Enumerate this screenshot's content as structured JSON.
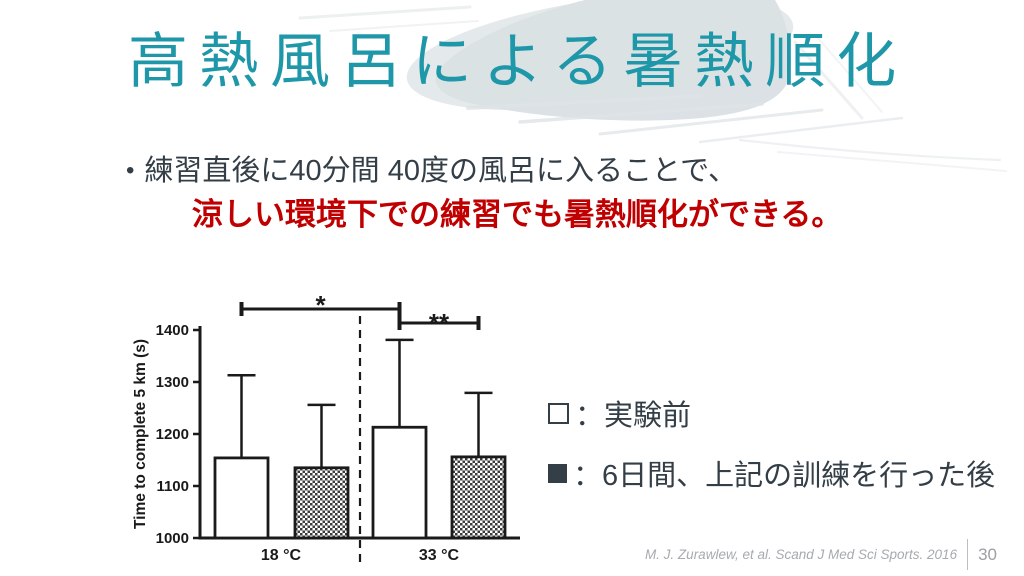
{
  "slide": {
    "title": "高熱風呂による暑熱順化",
    "bullet": {
      "marker": "•",
      "line1": "練習直後に40分間 40度の風呂に入ることで、",
      "line2": "涼しい環境下での練習でも暑熱順化ができる。"
    },
    "legend": {
      "items": [
        {
          "marker": "open-square",
          "text": "：実験前"
        },
        {
          "marker": "filled-square",
          "text": "：6日間、上記の訓練を行った後"
        }
      ]
    },
    "footer": {
      "citation": "M. J. Zurawlew, et al. Scand J Med Sci Sports. 2016",
      "page_number": "30"
    },
    "colors": {
      "title_teal": "#1e97a9",
      "body_text": "#333e47",
      "emphasis_red": "#c00000",
      "footer_gray": "#a6abae",
      "brush_gray": "#dbe1e4"
    }
  },
  "chart_data": {
    "type": "bar",
    "title": "",
    "xlabel": "",
    "ylabel": "Time to complete 5 km (s)",
    "categories": [
      "18 °C",
      "33 °C"
    ],
    "series": [
      {
        "id": "pre",
        "name": "実験前",
        "fill": "open",
        "values": [
          1154,
          1213
        ],
        "errors_up": [
          159,
          168
        ]
      },
      {
        "id": "post",
        "name": "6日間、上記の訓練を行った後",
        "fill": "hatched",
        "values": [
          1135,
          1156
        ],
        "errors_up": [
          121,
          123
        ]
      }
    ],
    "ylim": [
      1000,
      1400
    ],
    "yticks": [
      1000,
      1100,
      1200,
      1300,
      1400
    ],
    "grid": false,
    "group_separator": "dashed-vertical-line",
    "annotations": [
      {
        "label": "*",
        "from": {
          "category": 0,
          "series": 0
        },
        "to": {
          "category": 1,
          "series": 0
        }
      },
      {
        "label": "**",
        "from": {
          "category": 1,
          "series": 0
        },
        "to": {
          "category": 1,
          "series": 1
        }
      }
    ]
  }
}
